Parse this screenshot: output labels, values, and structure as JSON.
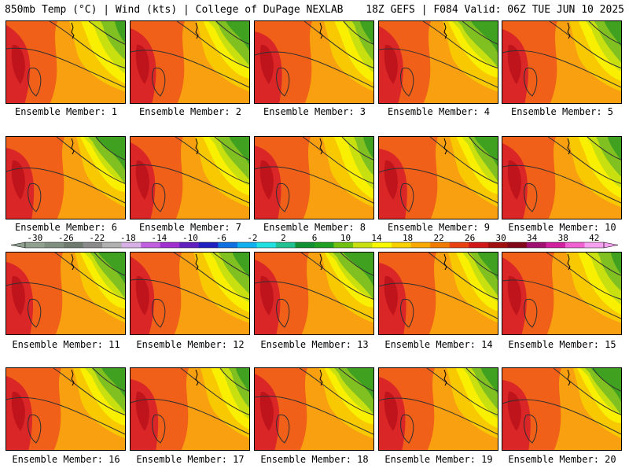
{
  "header": {
    "title": "850mb Temp (°C) | Wind (kts) | College of DuPage NEXLAB",
    "run_info": "18Z GEFS | F084 Valid: 06Z TUE JUN 10 2025"
  },
  "panels": [
    {
      "caption": "Ensemble Member: 1"
    },
    {
      "caption": "Ensemble Member: 2"
    },
    {
      "caption": "Ensemble Member: 3"
    },
    {
      "caption": "Ensemble Member: 4"
    },
    {
      "caption": "Ensemble Member: 5"
    },
    {
      "caption": "Ensemble Member: 6"
    },
    {
      "caption": "Ensemble Member: 7"
    },
    {
      "caption": "Ensemble Member: 8"
    },
    {
      "caption": "Ensemble Member: 9"
    },
    {
      "caption": "Ensemble Member: 10"
    },
    {
      "caption": "Ensemble Member: 11"
    },
    {
      "caption": "Ensemble Member: 12"
    },
    {
      "caption": "Ensemble Member: 13"
    },
    {
      "caption": "Ensemble Member: 14"
    },
    {
      "caption": "Ensemble Member: 15"
    },
    {
      "caption": "Ensemble Member: 16"
    },
    {
      "caption": "Ensemble Member: 17"
    },
    {
      "caption": "Ensemble Member: 18"
    },
    {
      "caption": "Ensemble Member: 19"
    },
    {
      "caption": "Ensemble Member: 20"
    }
  ],
  "colorbar": {
    "labels": [
      "-30",
      "-26",
      "-22",
      "-18",
      "-14",
      "-10",
      "-6",
      "-2",
      "2",
      "6",
      "10",
      "14",
      "18",
      "22",
      "26",
      "30",
      "34",
      "38",
      "42"
    ],
    "colors": [
      "#8fa08f",
      "#7f8f7f",
      "#6f7a6f",
      "#8a8a8a",
      "#b0b0b0",
      "#d8b0e8",
      "#c060e0",
      "#a030d0",
      "#6020c0",
      "#2020c0",
      "#1070e0",
      "#10b0f0",
      "#20e0e0",
      "#20c090",
      "#109030",
      "#20a020",
      "#70c010",
      "#c8e010",
      "#f8f800",
      "#f8d000",
      "#f8a800",
      "#f07a00",
      "#e84010",
      "#d01818",
      "#a01010",
      "#800818",
      "#a01070",
      "#d020a0",
      "#f060d0",
      "#f8a0f0"
    ]
  },
  "map_colors": {
    "hot": "#d8202a",
    "warm": "#f06018",
    "orange": "#f8a010",
    "amber": "#f8c800",
    "yellow": "#f8f000",
    "lime": "#c8e010",
    "green": "#80c020",
    "dark_green": "#40a020",
    "contour": "#303030"
  }
}
